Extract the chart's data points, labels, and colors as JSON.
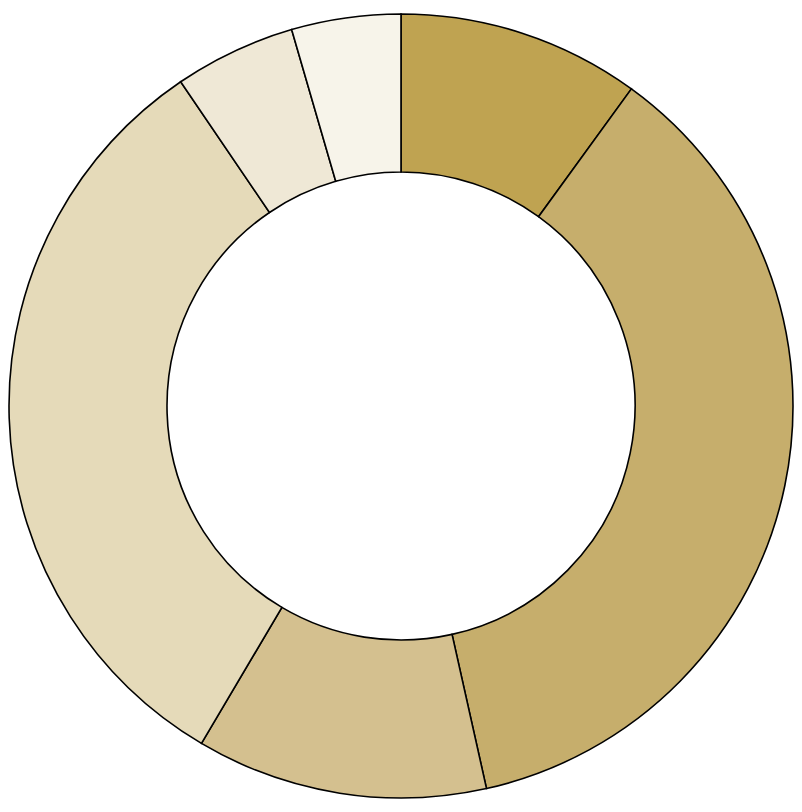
{
  "chart_data": {
    "type": "donut",
    "categories": [
      null,
      null,
      null,
      null,
      null,
      null
    ],
    "values": [
      10,
      36.5,
      12,
      32,
      5,
      4.5
    ],
    "colors": [
      "#bfa351",
      "#c6ae6c",
      "#d4c08f",
      "#e5dab9",
      "#efe8d6",
      "#f7f4ea"
    ]
  }
}
